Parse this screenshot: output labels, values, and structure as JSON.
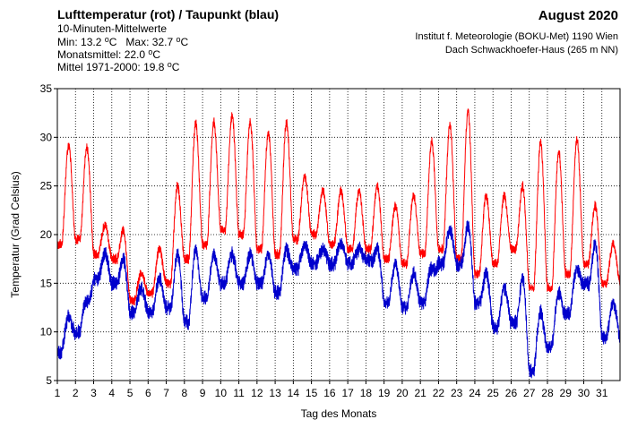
{
  "header": {
    "title": "Lufttemperatur (rot) / Taupunkt (blau)",
    "subtitle": "10-Minuten-Mittelwerte",
    "min_label": "Min:",
    "min_value": "13.2",
    "max_label": "Max:",
    "max_value": "32.7",
    "degree_mark": "o",
    "unit": "C",
    "month_mean_label": "Monatsmittel:",
    "month_mean_value": "22.0",
    "clim_label": "Mittel 1971-2000:",
    "clim_value": "19.8",
    "period": "August 2020",
    "institute_line1": "Institut f. Meteorologie (BOKU-Met) 1190 Wien",
    "institute_line2": "Dach Schwackhoefer-Haus (265 m NN)"
  },
  "colors": {
    "temperature": "#ff0000",
    "dewpoint": "#0000cc",
    "axis": "#000000",
    "grid": "#000000"
  },
  "chart_data": {
    "type": "line",
    "title": "Lufttemperatur (rot) / Taupunkt (blau)",
    "xlabel": "Tag des Monats",
    "ylabel": "Temperatur (Grad Celsius)",
    "xlim": [
      1,
      32
    ],
    "ylim": [
      5,
      35
    ],
    "x_ticks": [
      1,
      2,
      3,
      4,
      5,
      6,
      7,
      8,
      9,
      10,
      11,
      12,
      13,
      14,
      15,
      16,
      17,
      18,
      19,
      20,
      21,
      22,
      23,
      24,
      25,
      26,
      27,
      28,
      29,
      30,
      31
    ],
    "y_ticks": [
      5,
      10,
      15,
      20,
      25,
      30,
      35
    ],
    "grid": "dotted",
    "series": [
      {
        "name": "Lufttemperatur",
        "color": "#ff0000",
        "daily_min": [
          19.0,
          19.5,
          18.0,
          17.5,
          13.2,
          14.0,
          15.0,
          17.5,
          19.0,
          20.5,
          20.0,
          18.5,
          18.0,
          19.5,
          20.0,
          19.0,
          18.5,
          18.5,
          17.5,
          17.0,
          18.0,
          18.5,
          17.5,
          16.0,
          17.0,
          18.5,
          14.5,
          14.5,
          16.0,
          17.0,
          15.0
        ],
        "daily_max": [
          29.2,
          29.0,
          21.0,
          20.5,
          16.0,
          18.5,
          25.0,
          31.5,
          31.5,
          32.2,
          31.5,
          30.5,
          31.5,
          26.0,
          24.5,
          24.5,
          24.5,
          25.0,
          23.0,
          24.0,
          29.5,
          31.2,
          32.7,
          24.0,
          24.0,
          25.0,
          29.5,
          28.5,
          29.8,
          23.0,
          19.0
        ]
      },
      {
        "name": "Taupunkt",
        "color": "#0000cc",
        "daily_min": [
          8.0,
          10.0,
          15.5,
          15.0,
          12.0,
          12.0,
          12.5,
          11.0,
          13.5,
          15.0,
          15.0,
          15.0,
          14.0,
          16.5,
          17.0,
          17.0,
          17.0,
          17.5,
          13.0,
          12.5,
          13.0,
          17.0,
          17.0,
          13.0,
          10.5,
          11.0,
          6.0,
          8.5,
          12.0,
          15.0,
          9.5
        ],
        "daily_max": [
          11.5,
          13.0,
          18.0,
          17.5,
          14.5,
          15.5,
          18.0,
          18.5,
          18.0,
          18.0,
          18.0,
          18.0,
          18.5,
          19.0,
          18.5,
          19.0,
          18.5,
          18.5,
          17.0,
          16.0,
          16.5,
          20.5,
          21.0,
          16.0,
          14.5,
          15.5,
          12.0,
          14.0,
          16.5,
          19.0,
          13.0
        ]
      }
    ]
  }
}
